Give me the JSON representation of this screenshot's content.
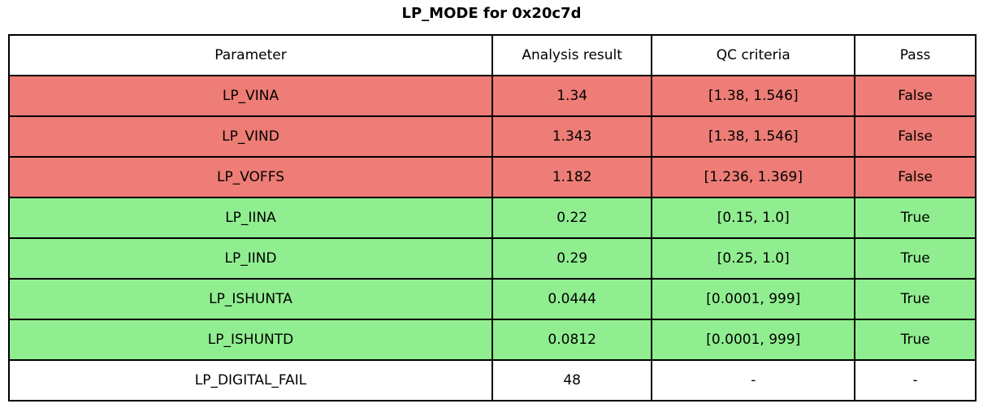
{
  "title": "LP_MODE for 0x20c7d",
  "colors": {
    "fail": "#ed7d76",
    "pass": "#90ee90",
    "neutral": "#ffffff",
    "border": "#000000",
    "background": "#ffffff"
  },
  "chart_data": {
    "type": "table",
    "title": "LP_MODE for 0x20c7d",
    "columns": [
      "Parameter",
      "Analysis result",
      "QC criteria",
      "Pass"
    ],
    "rows": [
      {
        "parameter": "LP_VINA",
        "analysis_result": "1.34",
        "qc_criteria": "[1.38, 1.546]",
        "pass": "False",
        "status": "fail"
      },
      {
        "parameter": "LP_VIND",
        "analysis_result": "1.343",
        "qc_criteria": "[1.38, 1.546]",
        "pass": "False",
        "status": "fail"
      },
      {
        "parameter": "LP_VOFFS",
        "analysis_result": "1.182",
        "qc_criteria": "[1.236, 1.369]",
        "pass": "False",
        "status": "fail"
      },
      {
        "parameter": "LP_IINA",
        "analysis_result": "0.22",
        "qc_criteria": "[0.15, 1.0]",
        "pass": "True",
        "status": "pass"
      },
      {
        "parameter": "LP_IIND",
        "analysis_result": "0.29",
        "qc_criteria": "[0.25, 1.0]",
        "pass": "True",
        "status": "pass"
      },
      {
        "parameter": "LP_ISHUNTA",
        "analysis_result": "0.0444",
        "qc_criteria": "[0.0001, 999]",
        "pass": "True",
        "status": "pass"
      },
      {
        "parameter": "LP_ISHUNTD",
        "analysis_result": "0.0812",
        "qc_criteria": "[0.0001, 999]",
        "pass": "True",
        "status": "pass"
      },
      {
        "parameter": "LP_DIGITAL_FAIL",
        "analysis_result": "48",
        "qc_criteria": "-",
        "pass": "-",
        "status": "neutral"
      }
    ],
    "row_status_colors": {
      "fail": "#ed7d76",
      "pass": "#90ee90",
      "neutral": "#ffffff"
    },
    "layout": {
      "grid": true,
      "title_position": "top-center"
    }
  }
}
